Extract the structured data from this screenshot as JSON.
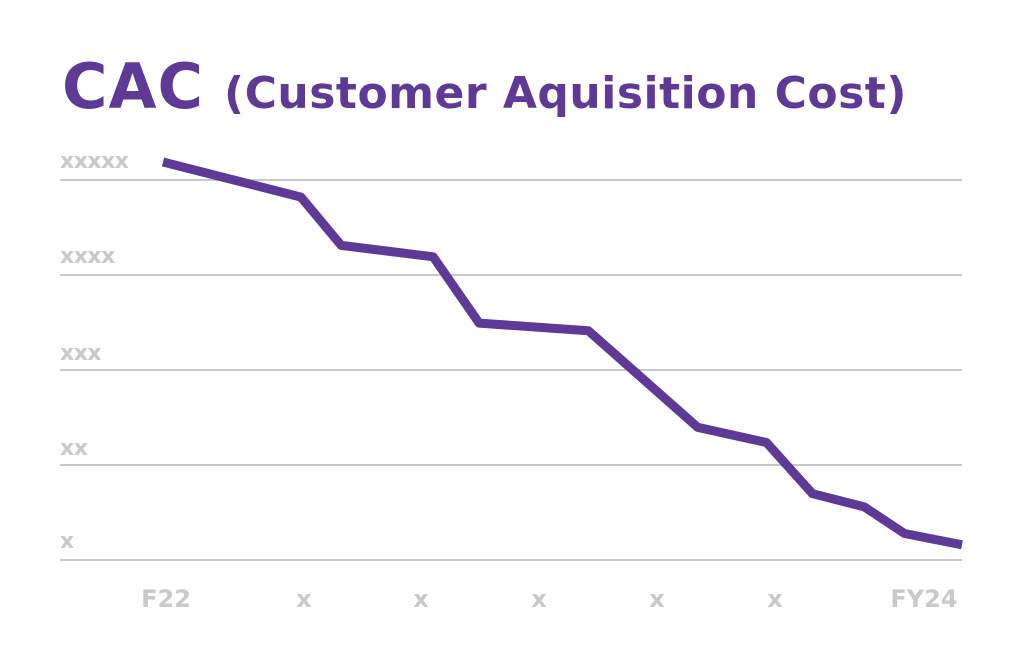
{
  "chart_data": {
    "type": "line",
    "title_main": "CAC",
    "title_sub": "(Customer Aquisition Cost)",
    "xlabel": "",
    "ylabel": "",
    "categories": [
      "F22",
      "x",
      "x",
      "x",
      "x",
      "x",
      "FY24"
    ],
    "ytick_labels": [
      "x",
      "xx",
      "xxx",
      "xxxx",
      "xxxxx"
    ],
    "ylim": [
      0,
      4.2
    ],
    "xlim": [
      0,
      6.7
    ],
    "grid": true,
    "legend": "none",
    "series": [
      {
        "x": [
          0,
          1.2,
          1.55,
          2.35,
          2.75,
          3.7,
          4.65,
          5.25,
          5.65,
          6.1,
          6.45,
          6.95
        ],
        "values": [
          4.2,
          3.83,
          3.32,
          3.2,
          2.5,
          2.42,
          1.4,
          1.24,
          0.7,
          0.56,
          0.28,
          0.16
        ]
      }
    ],
    "colors": {
      "line": "#5e3a96",
      "title": "#5e3a96",
      "grid": "#c8c8c8",
      "tick": "#c9c9c9"
    }
  }
}
